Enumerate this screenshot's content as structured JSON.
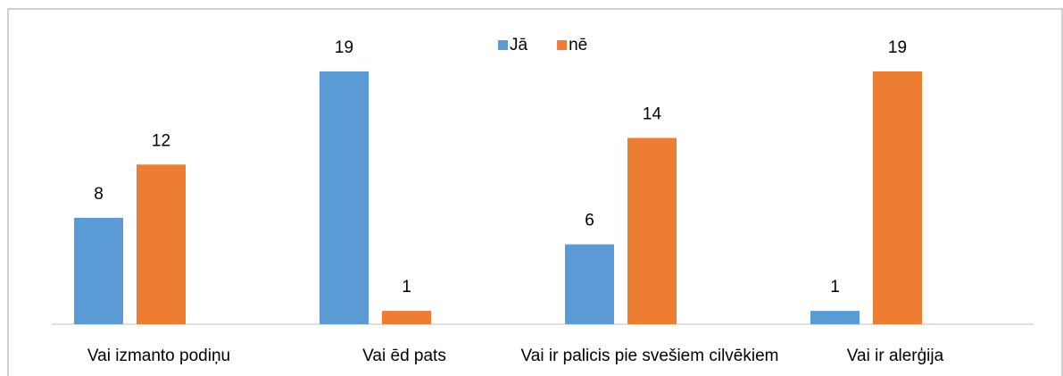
{
  "chart_data": {
    "type": "bar",
    "categories": [
      "Vai izmanto podiņu",
      "Vai ēd pats",
      "Vai ir palicis pie svešiem cilvēkiem",
      "Vai ir alerģija"
    ],
    "series": [
      {
        "name": "Jā",
        "color": "#5b9bd5",
        "values": [
          8,
          19,
          6,
          1
        ]
      },
      {
        "name": "nē",
        "color": "#ed7d31",
        "values": [
          12,
          1,
          14,
          19
        ]
      }
    ],
    "ylim": [
      0,
      19
    ],
    "legend": "top"
  }
}
